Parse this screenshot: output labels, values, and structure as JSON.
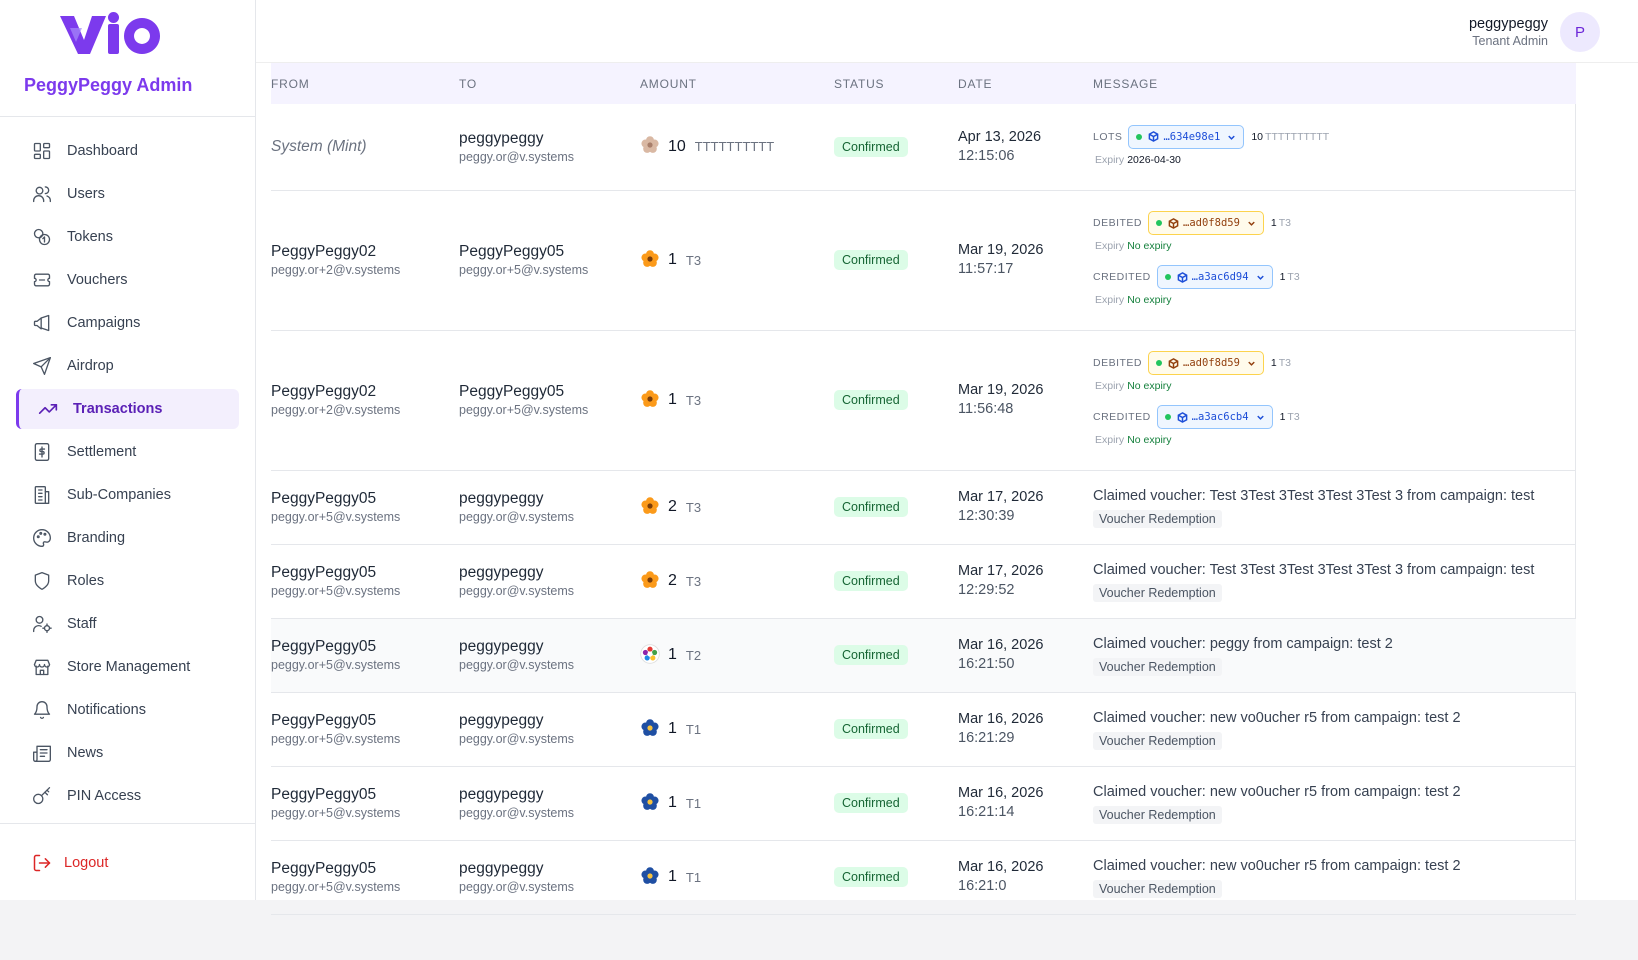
{
  "brand": {
    "logo_text": "VIO",
    "name": "PeggyPeggy Admin"
  },
  "nav": [
    {
      "label": "Dashboard",
      "icon": "dashboard-icon",
      "active": false
    },
    {
      "label": "Users",
      "icon": "users-icon",
      "active": false
    },
    {
      "label": "Tokens",
      "icon": "tokens-icon",
      "active": false
    },
    {
      "label": "Vouchers",
      "icon": "ticket-icon",
      "active": false
    },
    {
      "label": "Campaigns",
      "icon": "megaphone-icon",
      "active": false
    },
    {
      "label": "Airdrop",
      "icon": "send-icon",
      "active": false
    },
    {
      "label": "Transactions",
      "icon": "trending-up-icon",
      "active": true
    },
    {
      "label": "Settlement",
      "icon": "dollar-receipt-icon",
      "active": false
    },
    {
      "label": "Sub-Companies",
      "icon": "building-icon",
      "active": false
    },
    {
      "label": "Branding",
      "icon": "palette-icon",
      "active": false
    },
    {
      "label": "Roles",
      "icon": "shield-icon",
      "active": false
    },
    {
      "label": "Staff",
      "icon": "user-cog-icon",
      "active": false
    },
    {
      "label": "Store Management",
      "icon": "store-icon",
      "active": false
    },
    {
      "label": "Notifications",
      "icon": "bell-icon",
      "active": false
    },
    {
      "label": "News",
      "icon": "newspaper-icon",
      "active": false
    },
    {
      "label": "PIN Access",
      "icon": "key-icon",
      "active": false
    }
  ],
  "logout": {
    "label": "Logout"
  },
  "header": {
    "user_name": "peggypeggy",
    "user_role": "Tenant Admin",
    "avatar_initial": "P"
  },
  "table": {
    "columns": [
      "FROM",
      "TO",
      "AMOUNT",
      "STATUS",
      "DATE",
      "MESSAGE"
    ],
    "rows": [
      {
        "from_system": "System (Mint)",
        "to_name": "peggypeggy",
        "to_email": "peggy.or@v.systems",
        "amount": "10",
        "symbol": "TTTTTTTTTT",
        "token_icon": "flower-beige",
        "status": "Confirmed",
        "date": "Apr 13, 2026",
        "time": "12:15:06",
        "lots": {
          "label": "LOTS",
          "chip": "…634e98e1",
          "amount": "10",
          "symbol": "TTTTTTTTTT",
          "expiry_label": "Expiry",
          "expiry": "2026-04-30"
        }
      },
      {
        "from_name": "PeggyPeggy02",
        "from_email": "peggy.or+2@v.systems",
        "to_name": "PeggyPeggy05",
        "to_email": "peggy.or+5@v.systems",
        "amount": "1",
        "symbol": "T3",
        "token_icon": "flower-orange",
        "status": "Confirmed",
        "date": "Mar 19, 2026",
        "time": "11:57:17",
        "debited": {
          "label": "DEBITED",
          "chip": "…ad0f8d59",
          "amount": "1",
          "symbol": "T3",
          "expiry_label": "Expiry",
          "expiry": "No expiry"
        },
        "credited": {
          "label": "CREDITED",
          "chip": "…a3ac6d94",
          "amount": "1",
          "symbol": "T3",
          "expiry_label": "Expiry",
          "expiry": "No expiry"
        }
      },
      {
        "from_name": "PeggyPeggy02",
        "from_email": "peggy.or+2@v.systems",
        "to_name": "PeggyPeggy05",
        "to_email": "peggy.or+5@v.systems",
        "amount": "1",
        "symbol": "T3",
        "token_icon": "flower-orange",
        "status": "Confirmed",
        "date": "Mar 19, 2026",
        "time": "11:56:48",
        "debited": {
          "label": "DEBITED",
          "chip": "…ad0f8d59",
          "amount": "1",
          "symbol": "T3",
          "expiry_label": "Expiry",
          "expiry": "No expiry"
        },
        "credited": {
          "label": "CREDITED",
          "chip": "…a3ac6cb4",
          "amount": "1",
          "symbol": "T3",
          "expiry_label": "Expiry",
          "expiry": "No expiry"
        }
      },
      {
        "from_name": "PeggyPeggy05",
        "from_email": "peggy.or+5@v.systems",
        "to_name": "peggypeggy",
        "to_email": "peggy.or@v.systems",
        "amount": "2",
        "symbol": "T3",
        "token_icon": "flower-orange",
        "status": "Confirmed",
        "date": "Mar 17, 2026",
        "time": "12:30:39",
        "message": "Claimed voucher: Test 3Test 3Test 3Test 3Test 3 from campaign: test",
        "tag": "Voucher Redemption"
      },
      {
        "from_name": "PeggyPeggy05",
        "from_email": "peggy.or+5@v.systems",
        "to_name": "peggypeggy",
        "to_email": "peggy.or@v.systems",
        "amount": "2",
        "symbol": "T3",
        "token_icon": "flower-orange",
        "status": "Confirmed",
        "date": "Mar 17, 2026",
        "time": "12:29:52",
        "message": "Claimed voucher: Test 3Test 3Test 3Test 3Test 3 from campaign: test",
        "tag": "Voucher Redemption"
      },
      {
        "from_name": "PeggyPeggy05",
        "from_email": "peggy.or+5@v.systems",
        "to_name": "peggypeggy",
        "to_email": "peggy.or@v.systems",
        "amount": "1",
        "symbol": "T2",
        "token_icon": "flower-multicolor",
        "status": "Confirmed",
        "date": "Mar 16, 2026",
        "time": "16:21:50",
        "message": "Claimed voucher: peggy from campaign: test 2",
        "tag": "Voucher Redemption",
        "highlighted": true
      },
      {
        "from_name": "PeggyPeggy05",
        "from_email": "peggy.or+5@v.systems",
        "to_name": "peggypeggy",
        "to_email": "peggy.or@v.systems",
        "amount": "1",
        "symbol": "T1",
        "token_icon": "flower-blue",
        "status": "Confirmed",
        "date": "Mar 16, 2026",
        "time": "16:21:29",
        "message": "Claimed voucher: new vo0ucher r5 from campaign: test 2",
        "tag": "Voucher Redemption"
      },
      {
        "from_name": "PeggyPeggy05",
        "from_email": "peggy.or+5@v.systems",
        "to_name": "peggypeggy",
        "to_email": "peggy.or@v.systems",
        "amount": "1",
        "symbol": "T1",
        "token_icon": "flower-blue",
        "status": "Confirmed",
        "date": "Mar 16, 2026",
        "time": "16:21:14",
        "message": "Claimed voucher: new vo0ucher r5 from campaign: test 2",
        "tag": "Voucher Redemption"
      },
      {
        "from_name": "PeggyPeggy05",
        "from_email": "peggy.or+5@v.systems",
        "to_name": "peggypeggy",
        "to_email": "peggy.or@v.systems",
        "amount": "1",
        "symbol": "T1",
        "token_icon": "flower-blue",
        "status": "Confirmed",
        "date": "Mar 16, 2026",
        "time": "16:21:0",
        "message": "Claimed voucher: new vo0ucher r5 from campaign: test 2",
        "tag": "Voucher Redemption"
      }
    ]
  },
  "colors": {
    "accent": "#7c3aed",
    "danger": "#dc2626",
    "success_bg": "#dcfce7",
    "success_text": "#166534"
  }
}
